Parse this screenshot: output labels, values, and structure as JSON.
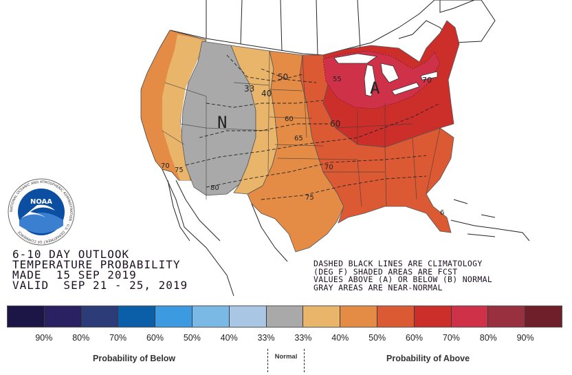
{
  "title": {
    "line1": "6-10 DAY OUTLOOK",
    "line2": "TEMPERATURE PROBABILITY",
    "line3": "MADE  15 SEP 2019",
    "line4": "VALID  SEP 21 - 25, 2019"
  },
  "notes": {
    "line1": "DASHED BLACK LINES ARE CLIMATOLOGY",
    "line2": "(DEG F) SHADED AREAS ARE FCST",
    "line3": "VALUES ABOVE (A) OR BELOW (B) NORMAL",
    "line4": "GRAY AREAS ARE NEAR-NORMAL"
  },
  "logo": {
    "text": "NOAA",
    "ring_text": "NATIONAL OCEANIC AND ATMOSPHERIC ADMINISTRATION · U.S. DEPARTMENT OF COMMERCE"
  },
  "map": {
    "region_labels": {
      "above": "A",
      "normal": "N"
    },
    "contour_labels": [
      "33",
      "40",
      "50",
      "55",
      "60",
      "60",
      "65",
      "70",
      "70",
      "70",
      "75",
      "75",
      "80",
      "6"
    ]
  },
  "legend": {
    "colors": [
      "#1c1646",
      "#2a2163",
      "#2b3c78",
      "#0b5fa8",
      "#3c9ae0",
      "#7ab8e6",
      "#a9c6e4",
      "#a9a9a9",
      "#e9b56a",
      "#e48c46",
      "#dc5a33",
      "#cc2f2a",
      "#cf3248",
      "#993040",
      "#6e1f2a"
    ],
    "labels": [
      "90%",
      "80%",
      "70%",
      "60%",
      "50%",
      "40%",
      "33%",
      "33%",
      "40%",
      "50%",
      "60%",
      "70%",
      "80%",
      "90%"
    ],
    "below_label": "Probability of Below",
    "normal_label": "Normal",
    "above_label": "Probability of Above"
  }
}
